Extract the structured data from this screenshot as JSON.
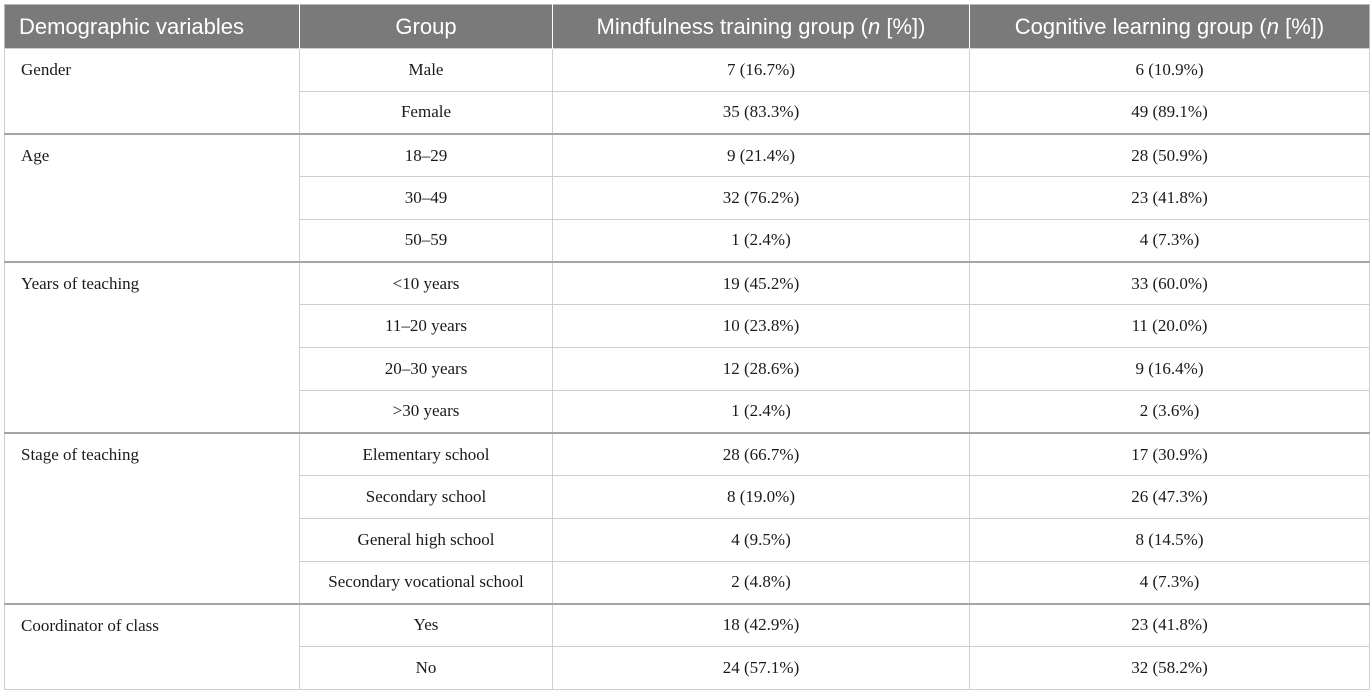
{
  "table": {
    "headers": [
      "Demographic variables",
      "Group",
      "Mindfulness training group (n [%])",
      "Cognitive learning group (n [%])"
    ],
    "header_parts": {
      "mind_pre": "Mindfulness training group (",
      "n": "n",
      "mind_post": " [%])",
      "cog_pre": "Cognitive learning group ("
    },
    "sections": [
      {
        "variable": "Gender",
        "rows": [
          {
            "group": "Male",
            "mindfulness": "7 (16.7%)",
            "cognitive": "6 (10.9%)"
          },
          {
            "group": "Female",
            "mindfulness": "35 (83.3%)",
            "cognitive": "49 (89.1%)"
          }
        ]
      },
      {
        "variable": "Age",
        "rows": [
          {
            "group": "18–29",
            "mindfulness": "9 (21.4%)",
            "cognitive": "28 (50.9%)"
          },
          {
            "group": "30–49",
            "mindfulness": "32 (76.2%)",
            "cognitive": "23 (41.8%)"
          },
          {
            "group": "50–59",
            "mindfulness": "1 (2.4%)",
            "cognitive": "4 (7.3%)"
          }
        ]
      },
      {
        "variable": "Years of teaching",
        "rows": [
          {
            "group": "<10 years",
            "mindfulness": "19 (45.2%)",
            "cognitive": "33 (60.0%)"
          },
          {
            "group": "11–20 years",
            "mindfulness": "10 (23.8%)",
            "cognitive": "11 (20.0%)"
          },
          {
            "group": "20–30 years",
            "mindfulness": "12 (28.6%)",
            "cognitive": "9 (16.4%)"
          },
          {
            "group": ">30 years",
            "mindfulness": "1 (2.4%)",
            "cognitive": "2 (3.6%)"
          }
        ]
      },
      {
        "variable": "Stage of teaching",
        "rows": [
          {
            "group": "Elementary school",
            "mindfulness": "28 (66.7%)",
            "cognitive": "17 (30.9%)"
          },
          {
            "group": "Secondary school",
            "mindfulness": "8 (19.0%)",
            "cognitive": "26 (47.3%)"
          },
          {
            "group": "General high school",
            "mindfulness": "4 (9.5%)",
            "cognitive": "8 (14.5%)"
          },
          {
            "group": "Secondary vocational school",
            "mindfulness": "2 (4.8%)",
            "cognitive": "4 (7.3%)"
          }
        ]
      },
      {
        "variable": "Coordinator of class",
        "rows": [
          {
            "group": "Yes",
            "mindfulness": "18 (42.9%)",
            "cognitive": "23 (41.8%)"
          },
          {
            "group": "No",
            "mindfulness": "24 (57.1%)",
            "cognitive": "32 (58.2%)"
          }
        ]
      }
    ]
  }
}
